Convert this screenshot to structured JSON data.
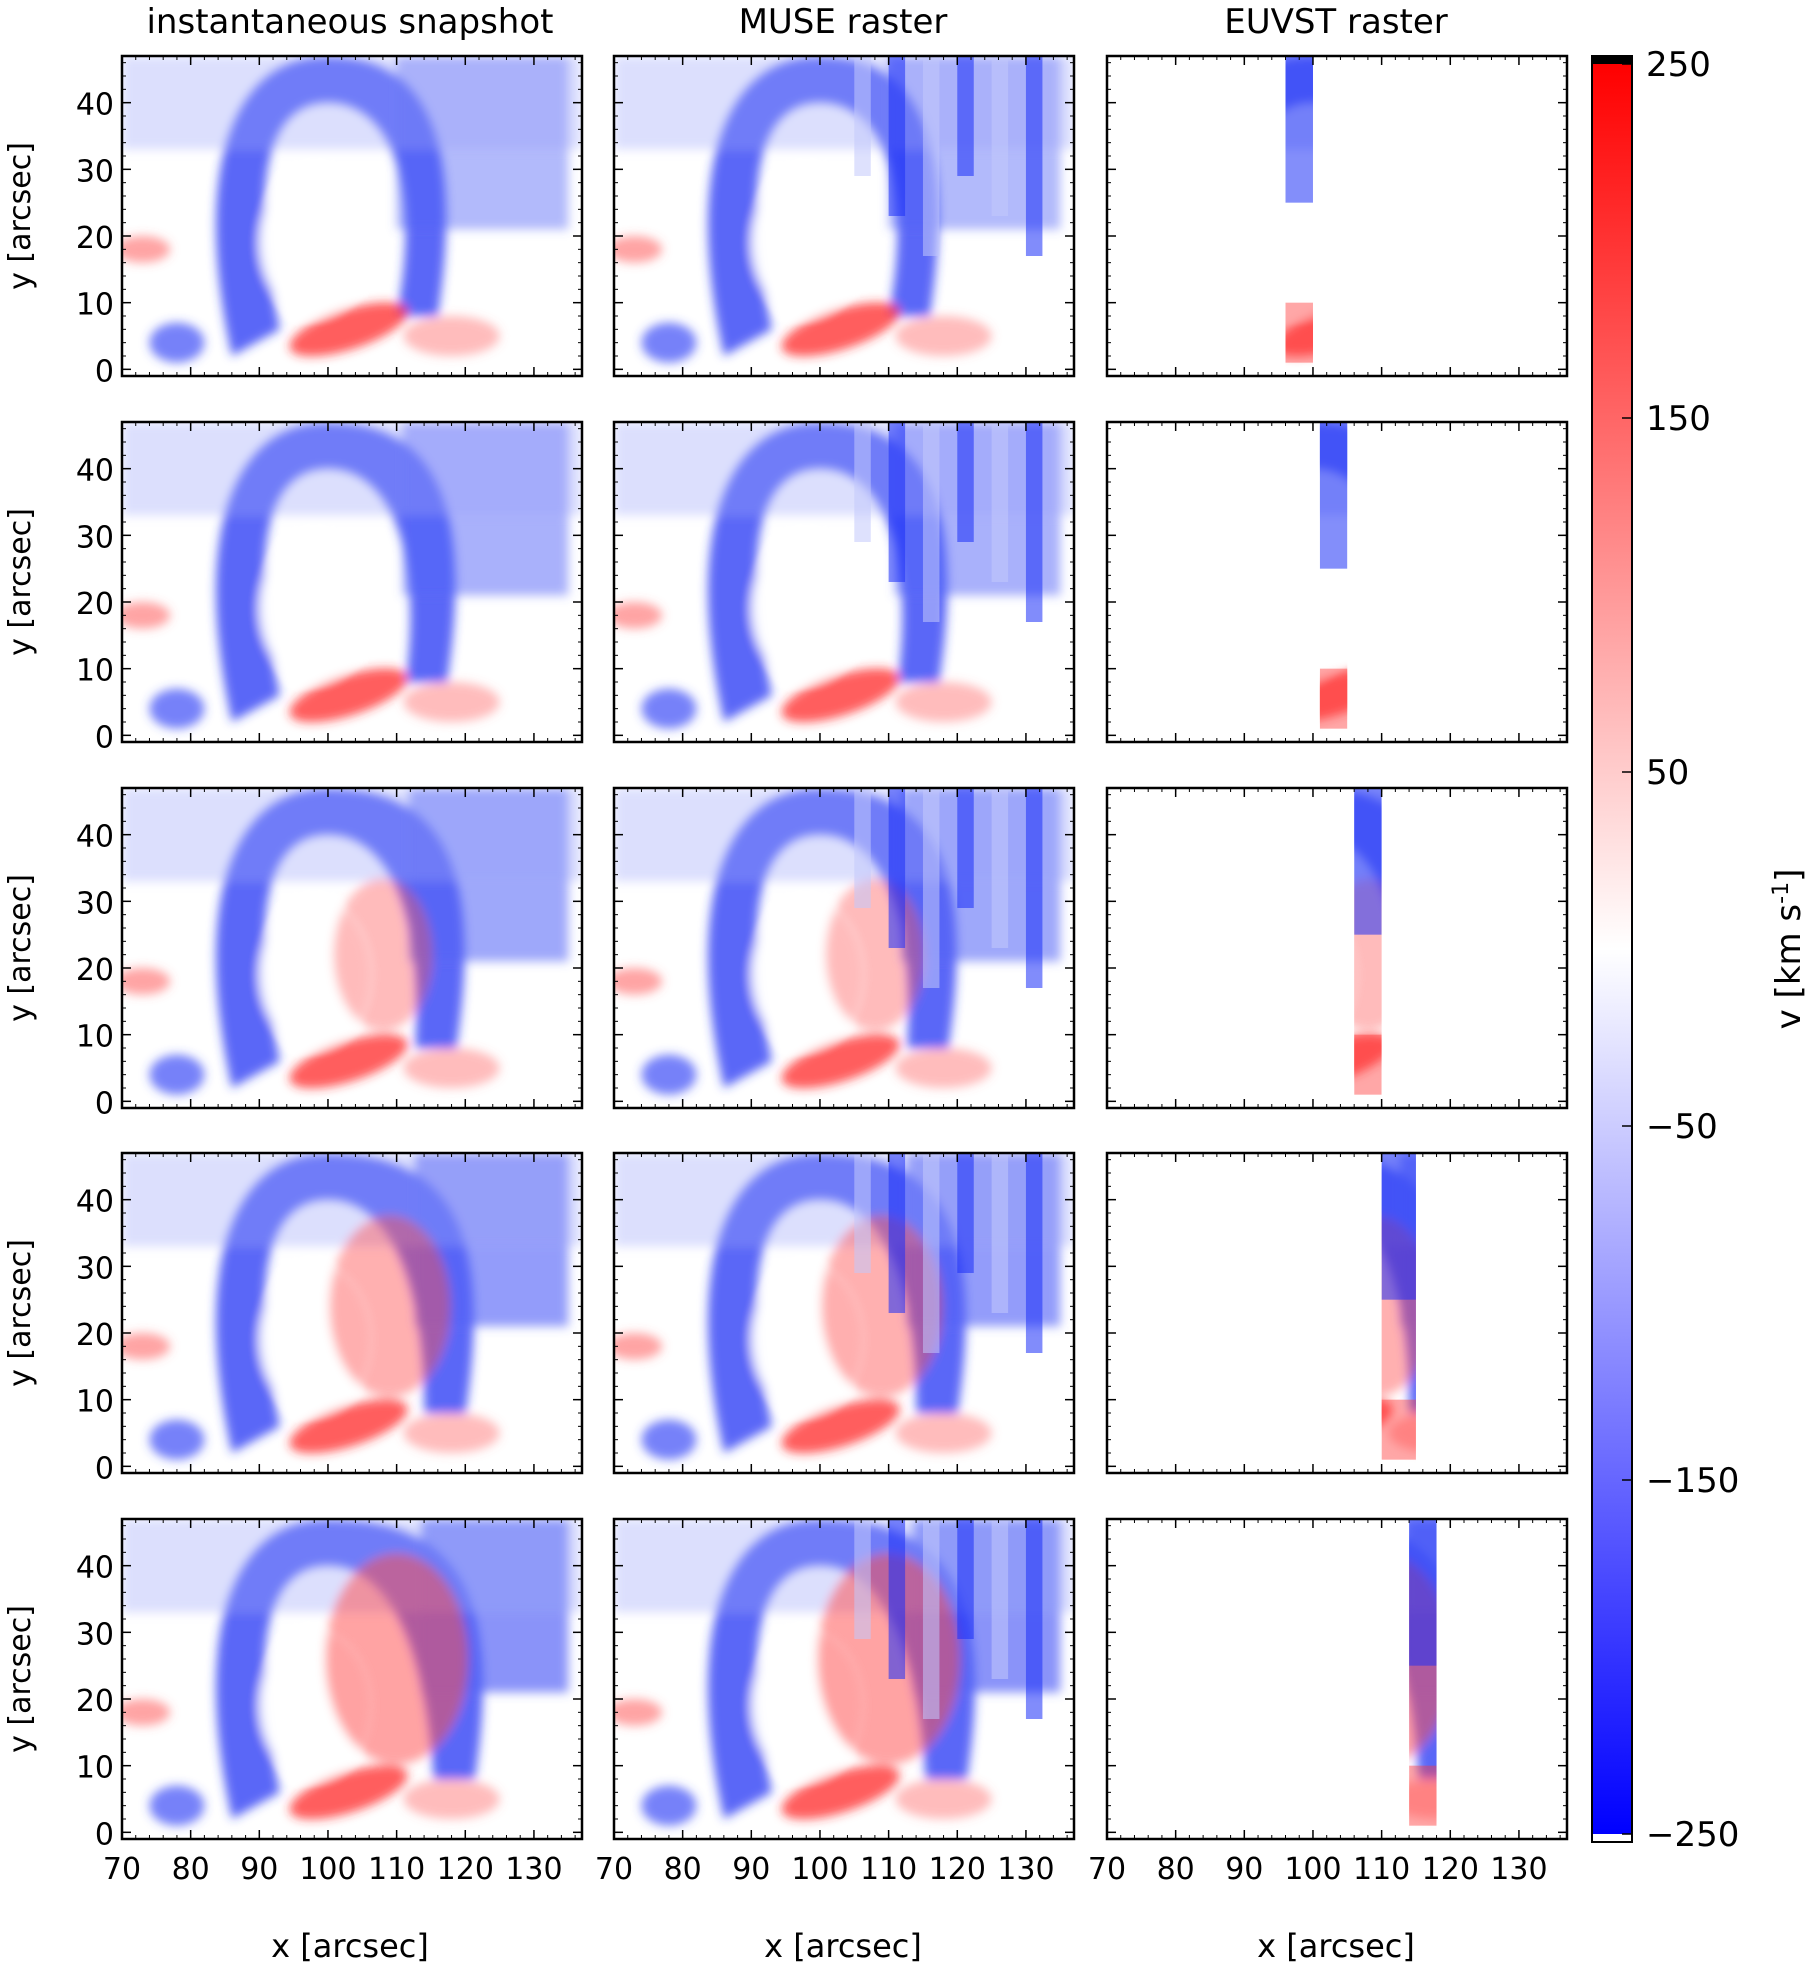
{
  "chart_data": {
    "type": "heatmap",
    "columns": [
      {
        "title": "instantaneous snapshot"
      },
      {
        "title": "MUSE raster"
      },
      {
        "title": "EUVST raster"
      }
    ],
    "rows": 5,
    "xlabel": "x [arcsec]",
    "ylabel": "y [arcsec]",
    "xlim": [
      70,
      137
    ],
    "ylim": [
      -1,
      47
    ],
    "xticks": [
      70,
      80,
      90,
      100,
      110,
      120,
      130
    ],
    "yticks": [
      0,
      10,
      20,
      30,
      40
    ],
    "euvst_slit_x": [
      [
        96,
        100
      ],
      [
        101,
        105
      ],
      [
        106,
        110
      ],
      [
        110,
        115
      ],
      [
        114,
        118
      ]
    ],
    "colorbar": {
      "label_base": "v  [km s",
      "label_sup": "-1",
      "label_end": "]",
      "range": [
        -250,
        250
      ],
      "ticks": [
        250,
        150,
        50,
        -50,
        -150,
        -250
      ],
      "colormap": [
        "#0000ff",
        "#ffffff",
        "#ff0000"
      ],
      "overflow_color": "#000000",
      "underflow_color": "#ffffff"
    }
  }
}
